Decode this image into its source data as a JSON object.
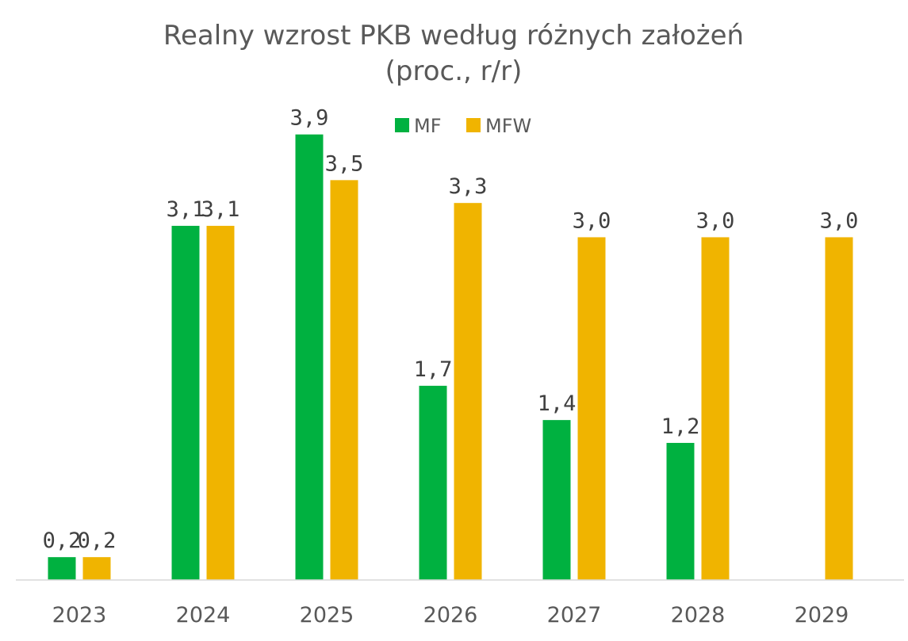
{
  "chart_data": {
    "type": "bar",
    "title": "Realny wzrost PKB według różnych założeń",
    "subtitle": "(proc., r/r)",
    "xlabel": "",
    "ylabel": "",
    "ylim": [
      0,
      4.3
    ],
    "grid": false,
    "legend_position": "top-center",
    "categories": [
      "2023",
      "2024",
      "2025",
      "2026",
      "2027",
      "2028",
      "2029"
    ],
    "series": [
      {
        "name": "MF",
        "color": "#00b140",
        "values": [
          0.2,
          3.1,
          3.9,
          1.7,
          1.4,
          1.2,
          null
        ],
        "labels": [
          "0,2",
          "3,1",
          "3,9",
          "1,7",
          "1,4",
          "1,2",
          ""
        ]
      },
      {
        "name": "MFW",
        "color": "#f0b400",
        "values": [
          0.2,
          3.1,
          3.5,
          3.3,
          3.0,
          3.0,
          3.0
        ],
        "labels": [
          "0,2",
          "3,1",
          "3,5",
          "3,3",
          "3,0",
          "3,0",
          "3,0"
        ]
      }
    ]
  }
}
